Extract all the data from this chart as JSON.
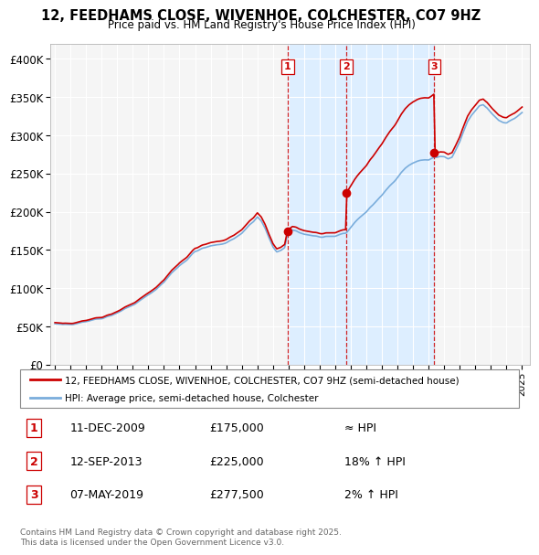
{
  "title": "12, FEEDHAMS CLOSE, WIVENHOE, COLCHESTER, CO7 9HZ",
  "subtitle": "Price paid vs. HM Land Registry's House Price Index (HPI)",
  "ylim": [
    0,
    420000
  ],
  "yticks": [
    0,
    50000,
    100000,
    150000,
    200000,
    250000,
    300000,
    350000,
    400000
  ],
  "ytick_labels": [
    "£0",
    "£50K",
    "£100K",
    "£150K",
    "£200K",
    "£250K",
    "£300K",
    "£350K",
    "£400K"
  ],
  "xlim_start": 1994.7,
  "xlim_end": 2025.5,
  "background_color": "#ffffff",
  "plot_bg_color": "#f5f5f5",
  "grid_color": "#ffffff",
  "sale_color": "#cc0000",
  "hpi_color": "#7aaddc",
  "shade_color": "#ddeeff",
  "dashed_line_color": "#cc0000",
  "legend_sale_label": "12, FEEDHAMS CLOSE, WIVENHOE, COLCHESTER, CO7 9HZ (semi-detached house)",
  "legend_hpi_label": "HPI: Average price, semi-detached house, Colchester",
  "transactions": [
    {
      "num": 1,
      "date": "11-DEC-2009",
      "price": 175000,
      "year": 2009.95,
      "note": "≈ HPI"
    },
    {
      "num": 2,
      "date": "12-SEP-2013",
      "price": 225000,
      "year": 2013.71,
      "note": "18% ↑ HPI"
    },
    {
      "num": 3,
      "date": "07-MAY-2019",
      "price": 277500,
      "year": 2019.36,
      "note": "2% ↑ HPI"
    }
  ],
  "footnote": "Contains HM Land Registry data © Crown copyright and database right 2025.\nThis data is licensed under the Open Government Licence v3.0."
}
